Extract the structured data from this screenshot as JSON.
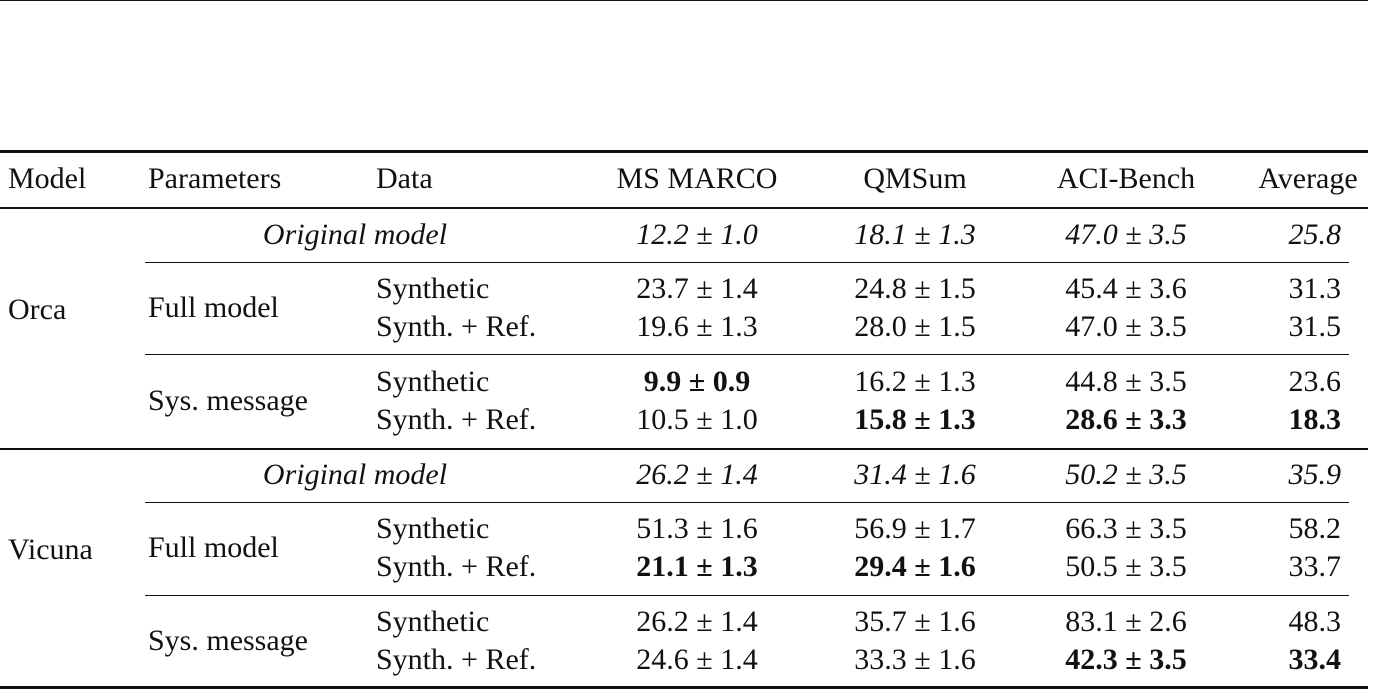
{
  "header": {
    "model": "Model",
    "parameters": "Parameters",
    "data": "Data",
    "ms_marco": "MS MARCO",
    "qmsum": "QMSum",
    "aci_bench": "ACI-Bench",
    "average": "Average"
  },
  "groups": [
    {
      "model": "Orca",
      "original": {
        "label": "Original model",
        "ms_marco": "12.2 ± 1.0",
        "qmsum": "18.1 ± 1.3",
        "aci_bench": "47.0 ± 3.5",
        "average": "25.8"
      },
      "rows": [
        {
          "parameters": "Full model",
          "data": "Synthetic",
          "ms_marco": "23.7 ± 1.4",
          "qmsum": "24.8 ± 1.5",
          "aci_bench": "45.4 ± 3.6",
          "average": "31.3"
        },
        {
          "parameters": "",
          "data": "Synth. + Ref.",
          "ms_marco": "19.6 ± 1.3",
          "qmsum": "28.0 ± 1.5",
          "aci_bench": "47.0 ± 3.5",
          "average": "31.5"
        },
        {
          "parameters": "Sys. message",
          "data": "Synthetic",
          "ms_marco": "9.9 ± 0.9",
          "qmsum": "16.2 ± 1.3",
          "aci_bench": "44.8 ± 3.5",
          "average": "23.6"
        },
        {
          "parameters": "",
          "data": "Synth. + Ref.",
          "ms_marco": "10.5 ± 1.0",
          "qmsum": "15.8 ± 1.3",
          "aci_bench": "28.6 ± 3.3",
          "average": "18.3"
        }
      ]
    },
    {
      "model": "Vicuna",
      "original": {
        "label": "Original model",
        "ms_marco": "26.2 ± 1.4",
        "qmsum": "31.4 ± 1.6",
        "aci_bench": "50.2 ± 3.5",
        "average": "35.9"
      },
      "rows": [
        {
          "parameters": "Full model",
          "data": "Synthetic",
          "ms_marco": "51.3 ± 1.6",
          "qmsum": "56.9 ± 1.7",
          "aci_bench": "66.3 ± 3.5",
          "average": "58.2"
        },
        {
          "parameters": "",
          "data": "Synth. + Ref.",
          "ms_marco": "21.1 ± 1.3",
          "qmsum": "29.4 ± 1.6",
          "aci_bench": "50.5 ± 3.5",
          "average": "33.7"
        },
        {
          "parameters": "Sys. message",
          "data": "Synthetic",
          "ms_marco": "26.2 ± 1.4",
          "qmsum": "35.7 ± 1.6",
          "aci_bench": "83.1 ± 2.6",
          "average": "48.3"
        },
        {
          "parameters": "",
          "data": "Synth. + Ref.",
          "ms_marco": "24.6 ± 1.4",
          "qmsum": "33.3 ± 1.6",
          "aci_bench": "42.3 ± 3.5",
          "average": "33.4"
        }
      ]
    }
  ]
}
